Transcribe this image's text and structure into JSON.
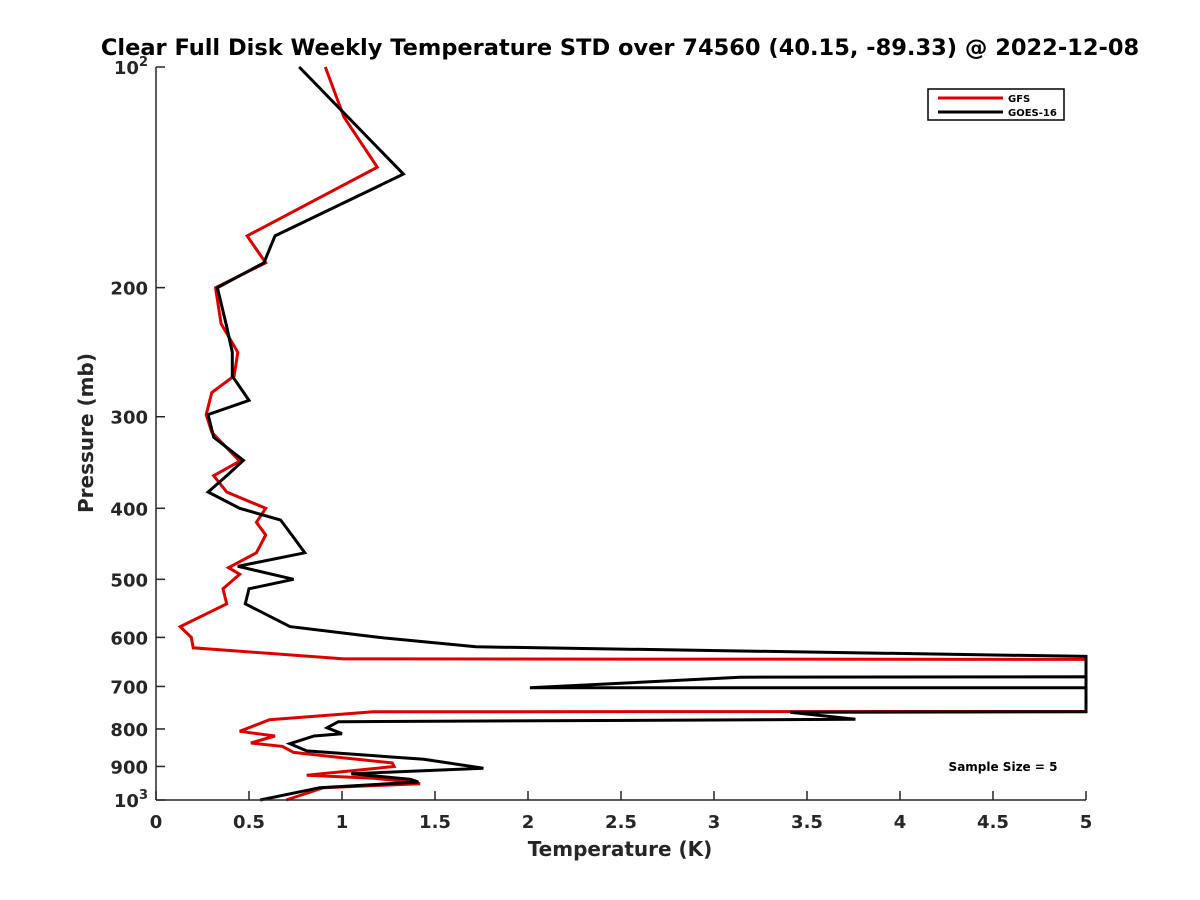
{
  "chart_data": {
    "type": "line",
    "title": "Clear Full Disk Weekly Temperature STD over 74560 (40.15, -89.33) @ 2022-12-08",
    "xlabel": "Temperature (K)",
    "ylabel": "Pressure (mb)",
    "xlim": [
      0,
      5
    ],
    "ylim": [
      100,
      1000
    ],
    "y_scale": "log",
    "y_reversed": true,
    "grid": false,
    "x_ticks": [
      0,
      0.5,
      1,
      1.5,
      2,
      2.5,
      3,
      3.5,
      4,
      4.5,
      5
    ],
    "x_tick_labels": [
      "0",
      "0.5",
      "1",
      "1.5",
      "2",
      "2.5",
      "3",
      "3.5",
      "4",
      "4.5",
      "5"
    ],
    "y_ticks": [
      {
        "value": 100,
        "base": "10",
        "exp": "2"
      },
      {
        "value": 200,
        "label": "200"
      },
      {
        "value": 300,
        "label": "300"
      },
      {
        "value": 400,
        "label": "400"
      },
      {
        "value": 500,
        "label": "500"
      },
      {
        "value": 600,
        "label": "600"
      },
      {
        "value": 700,
        "label": "700"
      },
      {
        "value": 800,
        "label": "800"
      },
      {
        "value": 900,
        "label": "900"
      },
      {
        "value": 1000,
        "base": "10",
        "exp": "3"
      }
    ],
    "legend_position": "top-right",
    "annotation": "Sample Size = 5",
    "series": [
      {
        "name": "GFS",
        "color": "#e00000",
        "points": [
          [
            0.91,
            100
          ],
          [
            1.01,
            117
          ],
          [
            1.19,
            137
          ],
          [
            0.49,
            170
          ],
          [
            0.59,
            185
          ],
          [
            0.32,
            200
          ],
          [
            0.35,
            224
          ],
          [
            0.44,
            245
          ],
          [
            0.42,
            264
          ],
          [
            0.3,
            278
          ],
          [
            0.27,
            298
          ],
          [
            0.3,
            315
          ],
          [
            0.45,
            345
          ],
          [
            0.31,
            361
          ],
          [
            0.38,
            380
          ],
          [
            0.59,
            400
          ],
          [
            0.54,
            418
          ],
          [
            0.59,
            435
          ],
          [
            0.54,
            460
          ],
          [
            0.39,
            482
          ],
          [
            0.45,
            492
          ],
          [
            0.36,
            515
          ],
          [
            0.38,
            540
          ],
          [
            0.13,
            580
          ],
          [
            0.19,
            600
          ],
          [
            0.2,
            620
          ],
          [
            1.01,
            642
          ],
          [
            5,
            643
          ],
          [
            5,
            757
          ],
          [
            1.17,
            758
          ],
          [
            0.61,
            777
          ],
          [
            0.45,
            806
          ],
          [
            0.64,
            818
          ],
          [
            0.51,
            836
          ],
          [
            0.68,
            845
          ],
          [
            0.74,
            861
          ],
          [
            0.99,
            875
          ],
          [
            1.27,
            890
          ],
          [
            1.28,
            900
          ],
          [
            0.81,
            925
          ],
          [
            1.17,
            934
          ],
          [
            1.39,
            946
          ],
          [
            1.42,
            950
          ],
          [
            0.9,
            962
          ],
          [
            0.7,
            1000
          ]
        ]
      },
      {
        "name": "GOES-16",
        "color": "#000000",
        "points": [
          [
            0.77,
            100
          ],
          [
            1.33,
            140
          ],
          [
            0.64,
            170
          ],
          [
            0.58,
            185
          ],
          [
            0.33,
            200
          ],
          [
            0.38,
            226
          ],
          [
            0.41,
            245
          ],
          [
            0.41,
            264
          ],
          [
            0.5,
            285
          ],
          [
            0.28,
            298
          ],
          [
            0.31,
            320
          ],
          [
            0.47,
            344
          ],
          [
            0.38,
            361
          ],
          [
            0.28,
            380
          ],
          [
            0.45,
            400
          ],
          [
            0.67,
            415
          ],
          [
            0.73,
            435
          ],
          [
            0.8,
            460
          ],
          [
            0.44,
            480
          ],
          [
            0.74,
            500
          ],
          [
            0.5,
            515
          ],
          [
            0.48,
            540
          ],
          [
            0.72,
            580
          ],
          [
            1.2,
            600
          ],
          [
            1.72,
            618
          ],
          [
            5,
            637
          ],
          [
            5,
            703
          ],
          [
            2.01,
            703
          ],
          [
            3.14,
            680
          ],
          [
            5,
            679
          ],
          [
            5,
            758
          ],
          [
            3.41,
            759
          ],
          [
            3.76,
            776
          ],
          [
            0.98,
            782
          ],
          [
            0.92,
            797
          ],
          [
            1.0,
            812
          ],
          [
            0.85,
            818
          ],
          [
            0.72,
            838
          ],
          [
            0.81,
            857
          ],
          [
            1.44,
            880
          ],
          [
            1.76,
            905
          ],
          [
            1.05,
            921
          ],
          [
            1.37,
            937
          ],
          [
            1.41,
            945
          ],
          [
            0.88,
            962
          ],
          [
            0.56,
            1000
          ]
        ]
      }
    ]
  }
}
